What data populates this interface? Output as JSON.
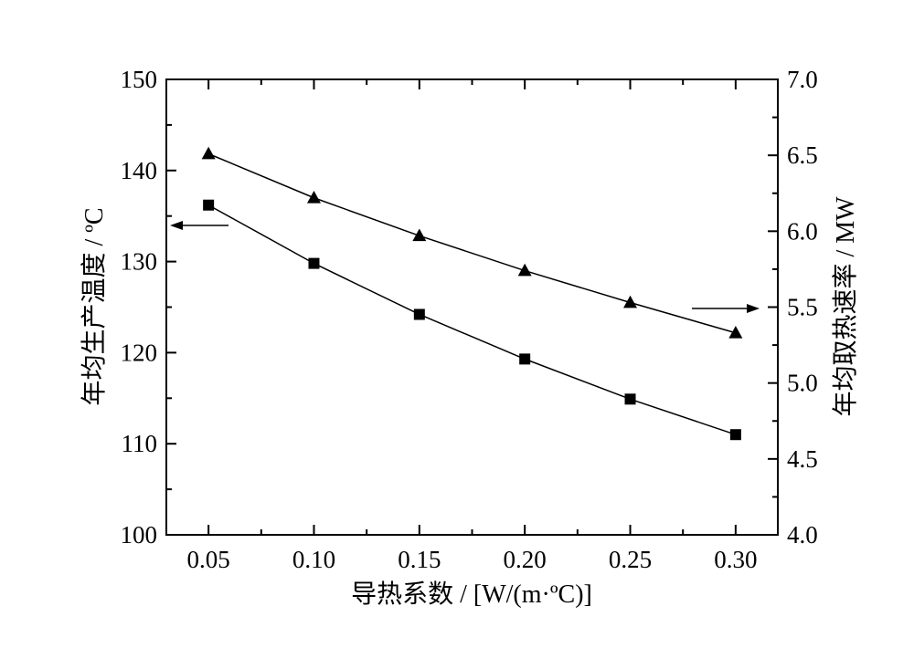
{
  "chart_data": {
    "type": "line",
    "xlabel": "导热系数 / [W/(m·ºC)]",
    "ylabel_left": "年均生产温度 / ºC",
    "ylabel_right": "年均取热速率 / MW",
    "x": [
      0.05,
      0.1,
      0.15,
      0.2,
      0.25,
      0.3
    ],
    "xticks": [
      "0.05",
      "0.10",
      "0.15",
      "0.20",
      "0.25",
      "0.30"
    ],
    "xlim": [
      0.03,
      0.32
    ],
    "ylim_left": [
      100,
      150
    ],
    "yticks_left": [
      "100",
      "110",
      "120",
      "130",
      "140",
      "150"
    ],
    "ylim_right": [
      4.0,
      7.0
    ],
    "yticks_right": [
      "4.0",
      "4.5",
      "5.0",
      "5.5",
      "6.0",
      "6.5",
      "7.0"
    ],
    "grid": false,
    "series": [
      {
        "axis": "left",
        "marker": "square",
        "values": [
          136.2,
          129.8,
          124.2,
          119.3,
          114.9,
          111.0
        ]
      },
      {
        "axis": "right",
        "marker": "triangle",
        "values": [
          6.51,
          6.22,
          5.97,
          5.74,
          5.53,
          5.33
        ]
      }
    ],
    "annotations": [
      {
        "type": "arrow",
        "direction": "left",
        "target_axis": "left"
      },
      {
        "type": "arrow",
        "direction": "right",
        "target_axis": "right"
      }
    ]
  }
}
